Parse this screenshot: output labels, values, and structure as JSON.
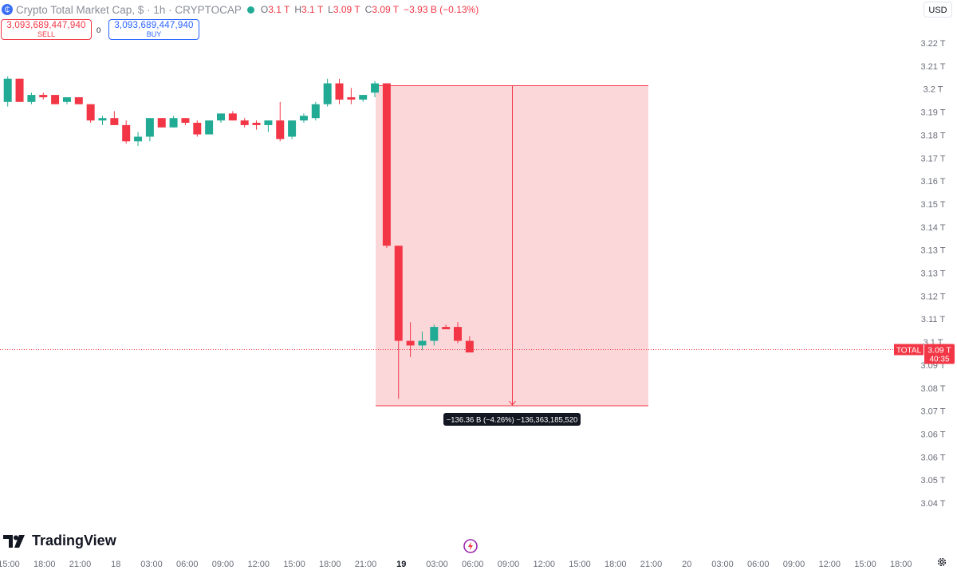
{
  "legend": {
    "symbol_icon": "crypto-symbol-icon",
    "title": "Crypto Total Market Cap, $ · 1h · CRYPTOCAP",
    "open_label": "O",
    "open_value": "3.1 T",
    "high_label": "H",
    "high_value": "3.1 T",
    "low_label": "L",
    "low_value": "3.09 T",
    "close_label": "C",
    "close_value": "3.09 T",
    "change": "−3.93 B (−0.13%)"
  },
  "trade": {
    "sell_price": "3,093,689,447,940",
    "sell_label": "SELL",
    "spread": "0",
    "buy_price": "3,093,689,447,940",
    "buy_label": "BUY"
  },
  "currency": "USD",
  "branding": {
    "name": "TradingView"
  },
  "colors": {
    "up": "#22ab94",
    "down": "#f23645",
    "range_fill": "#f23645"
  },
  "chart_data": {
    "type": "candlestick",
    "price_axis": {
      "labels": [
        "3.22 T",
        "3.21 T",
        "3.2 T",
        "3.19 T",
        "3.18 T",
        "3.17 T",
        "3.16 T",
        "3.15 T",
        "3.14 T",
        "3.13 T",
        "3.13 T",
        "3.12 T",
        "3.11 T",
        "3.1 T",
        "3.09 T",
        "3.08 T",
        "3.07 T",
        "3.06 T",
        "3.06 T",
        "3.05 T",
        "3.04 T"
      ],
      "range": [
        3.04,
        3.22
      ]
    },
    "time_axis": {
      "labels": [
        "15:00",
        "18:00",
        "21:00",
        "18",
        "03:00",
        "06:00",
        "09:00",
        "12:00",
        "15:00",
        "18:00",
        "21:00",
        "19",
        "03:00",
        "06:00",
        "09:00",
        "12:00",
        "15:00",
        "18:00",
        "21:00",
        "20",
        "03:00",
        "06:00",
        "09:00",
        "12:00",
        "15:00",
        "18:00"
      ],
      "bold": [
        "19"
      ]
    },
    "candles": [
      {
        "o": 3.198,
        "h": 3.209,
        "l": 3.196,
        "c": 3.208
      },
      {
        "o": 3.208,
        "h": 3.208,
        "l": 3.198,
        "c": 3.198
      },
      {
        "o": 3.198,
        "h": 3.202,
        "l": 3.197,
        "c": 3.201
      },
      {
        "o": 3.201,
        "h": 3.202,
        "l": 3.199,
        "c": 3.2
      },
      {
        "o": 3.201,
        "h": 3.201,
        "l": 3.197,
        "c": 3.197
      },
      {
        "o": 3.198,
        "h": 3.2,
        "l": 3.197,
        "c": 3.2
      },
      {
        "o": 3.2,
        "h": 3.2,
        "l": 3.197,
        "c": 3.197
      },
      {
        "o": 3.197,
        "h": 3.197,
        "l": 3.189,
        "c": 3.19
      },
      {
        "o": 3.19,
        "h": 3.192,
        "l": 3.188,
        "c": 3.191
      },
      {
        "o": 3.191,
        "h": 3.194,
        "l": 3.188,
        "c": 3.188
      },
      {
        "o": 3.188,
        "h": 3.19,
        "l": 3.18,
        "c": 3.181
      },
      {
        "o": 3.181,
        "h": 3.185,
        "l": 3.179,
        "c": 3.183
      },
      {
        "o": 3.183,
        "h": 3.191,
        "l": 3.181,
        "c": 3.191
      },
      {
        "o": 3.191,
        "h": 3.191,
        "l": 3.187,
        "c": 3.187
      },
      {
        "o": 3.187,
        "h": 3.192,
        "l": 3.187,
        "c": 3.191
      },
      {
        "o": 3.191,
        "h": 3.191,
        "l": 3.188,
        "c": 3.189
      },
      {
        "o": 3.189,
        "h": 3.19,
        "l": 3.183,
        "c": 3.184
      },
      {
        "o": 3.184,
        "h": 3.19,
        "l": 3.184,
        "c": 3.19
      },
      {
        "o": 3.19,
        "h": 3.193,
        "l": 3.189,
        "c": 3.193
      },
      {
        "o": 3.193,
        "h": 3.194,
        "l": 3.19,
        "c": 3.19
      },
      {
        "o": 3.19,
        "h": 3.191,
        "l": 3.187,
        "c": 3.188
      },
      {
        "o": 3.189,
        "h": 3.19,
        "l": 3.186,
        "c": 3.188
      },
      {
        "o": 3.188,
        "h": 3.19,
        "l": 3.185,
        "c": 3.19
      },
      {
        "o": 3.19,
        "h": 3.198,
        "l": 3.181,
        "c": 3.182
      },
      {
        "o": 3.183,
        "h": 3.19,
        "l": 3.182,
        "c": 3.19
      },
      {
        "o": 3.19,
        "h": 3.193,
        "l": 3.189,
        "c": 3.192
      },
      {
        "o": 3.191,
        "h": 3.198,
        "l": 3.19,
        "c": 3.197
      },
      {
        "o": 3.197,
        "h": 3.208,
        "l": 3.196,
        "c": 3.206
      },
      {
        "o": 3.206,
        "h": 3.208,
        "l": 3.197,
        "c": 3.199
      },
      {
        "o": 3.2,
        "h": 3.204,
        "l": 3.197,
        "c": 3.199
      },
      {
        "o": 3.199,
        "h": 3.201,
        "l": 3.198,
        "c": 3.201
      },
      {
        "o": 3.202,
        "h": 3.207,
        "l": 3.2,
        "c": 3.206
      },
      {
        "o": 3.206,
        "h": 3.206,
        "l": 3.135,
        "c": 3.136
      },
      {
        "o": 3.136,
        "h": 3.136,
        "l": 3.07,
        "c": 3.095
      },
      {
        "o": 3.095,
        "h": 3.103,
        "l": 3.088,
        "c": 3.093
      },
      {
        "o": 3.093,
        "h": 3.099,
        "l": 3.091,
        "c": 3.095
      },
      {
        "o": 3.095,
        "h": 3.102,
        "l": 3.093,
        "c": 3.101
      },
      {
        "o": 3.101,
        "h": 3.102,
        "l": 3.1,
        "c": 3.1
      },
      {
        "o": 3.101,
        "h": 3.103,
        "l": 3.094,
        "c": 3.095
      },
      {
        "o": 3.095,
        "h": 3.097,
        "l": 3.09,
        "c": 3.09
      }
    ],
    "range_measure": {
      "top": 3.205,
      "bottom": 3.067,
      "label": "−136.36 B (−4.26%) −136,363,185,520"
    },
    "last_price": {
      "symbol": "TOTAL",
      "price": "3.09 T",
      "countdown": "40:35",
      "value": 3.0915
    }
  }
}
